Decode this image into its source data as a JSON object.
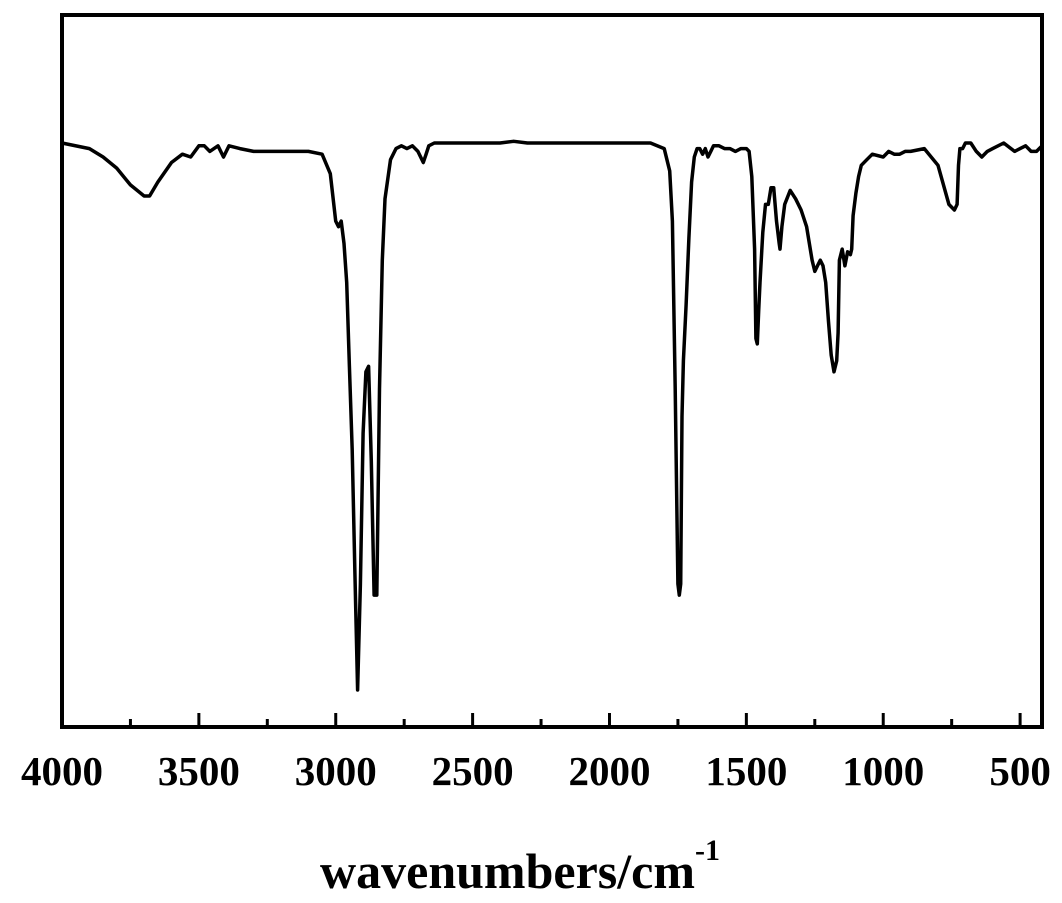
{
  "chart_data": {
    "type": "line",
    "title": "",
    "xlabel": "wavenumbers/cm",
    "xlabel_superscript": "-1",
    "ylabel": "",
    "xlim": [
      4000,
      420
    ],
    "x_reversed": true,
    "ylim": [
      0,
      100
    ],
    "y_ticks_shown": false,
    "grid": false,
    "x_major_ticks": [
      4000,
      3500,
      3000,
      2500,
      2000,
      1500,
      1000,
      500
    ],
    "x_tick_labels": [
      "4000",
      "3500",
      "3000",
      "2500",
      "2000",
      "1500",
      "1000",
      "500"
    ],
    "x_minor_ticks": [
      3750,
      3250,
      2750,
      2250,
      1750,
      1250,
      750
    ],
    "series": [
      {
        "color": "#000000",
        "x": [
          4000,
          3900,
          3850,
          3800,
          3750,
          3700,
          3680,
          3650,
          3600,
          3560,
          3530,
          3500,
          3480,
          3460,
          3430,
          3410,
          3390,
          3350,
          3300,
          3200,
          3100,
          3050,
          3020,
          3000,
          2990,
          2980,
          2970,
          2960,
          2950,
          2940,
          2930,
          2920,
          2910,
          2900,
          2890,
          2880,
          2870,
          2860,
          2850,
          2840,
          2830,
          2820,
          2800,
          2780,
          2760,
          2740,
          2720,
          2700,
          2680,
          2670,
          2660,
          2640,
          2600,
          2500,
          2400,
          2350,
          2300,
          2200,
          2100,
          2000,
          1900,
          1850,
          1800,
          1780,
          1770,
          1760,
          1750,
          1745,
          1740,
          1735,
          1730,
          1720,
          1710,
          1700,
          1690,
          1680,
          1670,
          1660,
          1650,
          1640,
          1630,
          1620,
          1610,
          1600,
          1580,
          1560,
          1540,
          1520,
          1500,
          1490,
          1480,
          1470,
          1465,
          1460,
          1455,
          1450,
          1440,
          1430,
          1420,
          1410,
          1400,
          1390,
          1380,
          1377,
          1370,
          1360,
          1340,
          1320,
          1300,
          1280,
          1260,
          1250,
          1240,
          1230,
          1220,
          1210,
          1200,
          1190,
          1180,
          1170,
          1165,
          1160,
          1150,
          1140,
          1130,
          1120,
          1115,
          1110,
          1100,
          1090,
          1080,
          1060,
          1040,
          1000,
          980,
          960,
          940,
          920,
          900,
          850,
          800,
          760,
          740,
          730,
          725,
          720,
          710,
          700,
          680,
          660,
          640,
          620,
          600,
          560,
          520,
          500,
          480,
          460,
          440,
          420
        ],
        "values": [
          99,
          98,
          96.5,
          94.5,
          91.5,
          89.5,
          89.5,
          92,
          95.5,
          97,
          96.5,
          98.5,
          98.5,
          97.5,
          98.5,
          96.5,
          98.5,
          98,
          97.5,
          97.5,
          97.5,
          97,
          93.5,
          85,
          84,
          85,
          81,
          74,
          59,
          44,
          22,
          1,
          20,
          47,
          58,
          59,
          42,
          18,
          18,
          55,
          78,
          89,
          96,
          98,
          98.5,
          98,
          98.5,
          97.5,
          95.5,
          97,
          98.5,
          99,
          99,
          99,
          99,
          99.3,
          99,
          99,
          99,
          99,
          99,
          99,
          98,
          94,
          85,
          55,
          20,
          18,
          20,
          50,
          60,
          70,
          82,
          92,
          96.5,
          98,
          98,
          97,
          98,
          96.5,
          97.5,
          98.5,
          98.5,
          98.5,
          98,
          98,
          97.5,
          98,
          98,
          97.5,
          93,
          80,
          64,
          63,
          69,
          74,
          83,
          88,
          88,
          91,
          91,
          85,
          81,
          80,
          84,
          88,
          90.5,
          89,
          87,
          84,
          78,
          76,
          77,
          78,
          77,
          74,
          67,
          61,
          58,
          60,
          65,
          78,
          80,
          77,
          79.5,
          79,
          80,
          86,
          90,
          93,
          95,
          96,
          97,
          96.5,
          97.5,
          97,
          97,
          97.5,
          97.5,
          98,
          95,
          88,
          87,
          88,
          95,
          98,
          98,
          99,
          99,
          97.5,
          96.5,
          97.5,
          98,
          99,
          97.5,
          98,
          98.5,
          97.5,
          97.5,
          98.5
        ]
      }
    ]
  }
}
